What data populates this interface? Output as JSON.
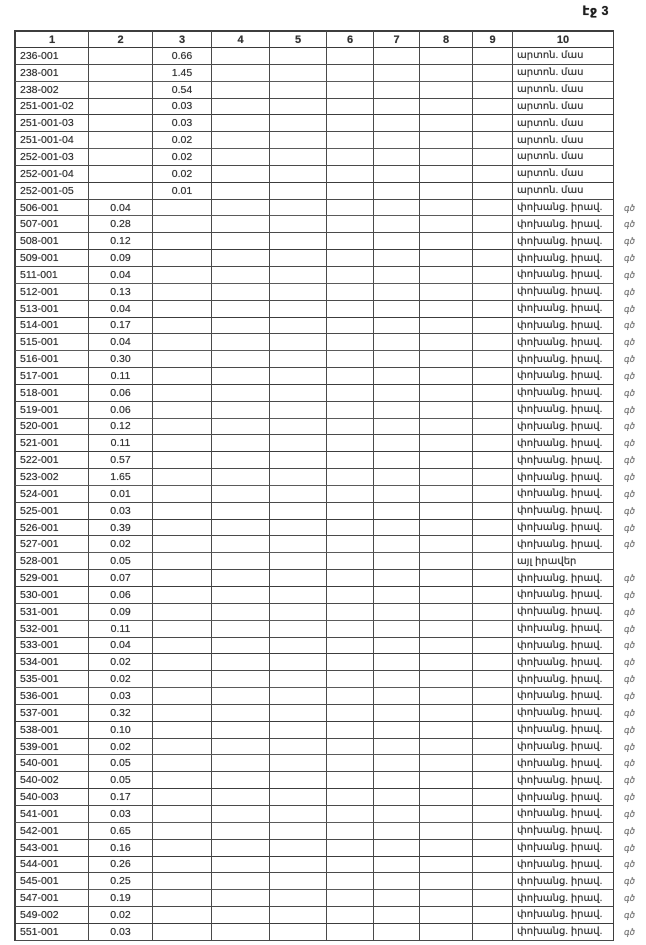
{
  "page": {
    "page_label": "էջ 3"
  },
  "colors": {
    "ink": "#2a2a2a",
    "grid": "#4a4a4a",
    "margin_mark": "#787878"
  },
  "table": {
    "headers": [
      "1",
      "2",
      "3",
      "4",
      "5",
      "6",
      "7",
      "8",
      "9",
      "10"
    ],
    "rows": [
      {
        "c1": "236-001",
        "c2": "",
        "c3": "0.66",
        "c10": "արտոն. մաս",
        "mark": ""
      },
      {
        "c1": "238-001",
        "c2": "",
        "c3": "1.45",
        "c10": "արտոն. մաս",
        "mark": ""
      },
      {
        "c1": "238-002",
        "c2": "",
        "c3": "0.54",
        "c10": "արտոն. մաս",
        "mark": ""
      },
      {
        "c1": "251-001-02",
        "c2": "",
        "c3": "0.03",
        "c10": "արտոն. մաս",
        "mark": ""
      },
      {
        "c1": "251-001-03",
        "c2": "",
        "c3": "0.03",
        "c10": "արտոն. մաս",
        "mark": ""
      },
      {
        "c1": "251-001-04",
        "c2": "",
        "c3": "0.02",
        "c10": "արտոն. մաս",
        "mark": ""
      },
      {
        "c1": "252-001-03",
        "c2": "",
        "c3": "0.02",
        "c10": "արտոն. մաս",
        "mark": ""
      },
      {
        "c1": "252-001-04",
        "c2": "",
        "c3": "0.02",
        "c10": "արտոն. մաս",
        "mark": ""
      },
      {
        "c1": "252-001-05",
        "c2": "",
        "c3": "0.01",
        "c10": "արտոն. մաս",
        "mark": ""
      },
      {
        "c1": "506-001",
        "c2": "0.04",
        "c3": "",
        "c10": "փոխանց. իրավ.",
        "mark": "գծ"
      },
      {
        "c1": "507-001",
        "c2": "0.28",
        "c3": "",
        "c10": "փոխանց. իրավ.",
        "mark": "գծ"
      },
      {
        "c1": "508-001",
        "c2": "0.12",
        "c3": "",
        "c10": "փոխանց. իրավ.",
        "mark": "գծ"
      },
      {
        "c1": "509-001",
        "c2": "0.09",
        "c3": "",
        "c10": "փոխանց. իրավ.",
        "mark": "գծ"
      },
      {
        "c1": "511-001",
        "c2": "0.04",
        "c3": "",
        "c10": "փոխանց. իրավ.",
        "mark": "գծ"
      },
      {
        "c1": "512-001",
        "c2": "0.13",
        "c3": "",
        "c10": "փոխանց. իրավ.",
        "mark": "գծ"
      },
      {
        "c1": "513-001",
        "c2": "0.04",
        "c3": "",
        "c10": "փոխանց. իրավ.",
        "mark": "գծ"
      },
      {
        "c1": "514-001",
        "c2": "0.17",
        "c3": "",
        "c10": "փոխանց. իրավ.",
        "mark": "գծ"
      },
      {
        "c1": "515-001",
        "c2": "0.04",
        "c3": "",
        "c10": "փոխանց. իրավ.",
        "mark": "գծ"
      },
      {
        "c1": "516-001",
        "c2": "0.30",
        "c3": "",
        "c10": "փոխանց. իրավ.",
        "mark": "գծ"
      },
      {
        "c1": "517-001",
        "c2": "0.11",
        "c3": "",
        "c10": "փոխանց. իրավ.",
        "mark": "գծ"
      },
      {
        "c1": "518-001",
        "c2": "0.06",
        "c3": "",
        "c10": "փոխանց. իրավ.",
        "mark": "գծ"
      },
      {
        "c1": "519-001",
        "c2": "0.06",
        "c3": "",
        "c10": "փոխանց. իրավ.",
        "mark": "գծ"
      },
      {
        "c1": "520-001",
        "c2": "0.12",
        "c3": "",
        "c10": "փոխանց. իրավ.",
        "mark": "գծ"
      },
      {
        "c1": "521-001",
        "c2": "0.11",
        "c3": "",
        "c10": "փոխանց. իրավ.",
        "mark": "գծ"
      },
      {
        "c1": "522-001",
        "c2": "0.57",
        "c3": "",
        "c10": "փոխանց. իրավ.",
        "mark": "գծ"
      },
      {
        "c1": "523-002",
        "c2": "1.65",
        "c3": "",
        "c10": "փոխանց. իրավ.",
        "mark": "գծ"
      },
      {
        "c1": "524-001",
        "c2": "0.01",
        "c3": "",
        "c10": "փոխանց. իրավ.",
        "mark": "գծ"
      },
      {
        "c1": "525-001",
        "c2": "0.03",
        "c3": "",
        "c10": "փոխանց. իրավ.",
        "mark": "գծ"
      },
      {
        "c1": "526-001",
        "c2": "0.39",
        "c3": "",
        "c10": "փոխանց. իրավ.",
        "mark": "գծ"
      },
      {
        "c1": "527-001",
        "c2": "0.02",
        "c3": "",
        "c10": "փոխանց. իրավ.",
        "mark": "գծ"
      },
      {
        "c1": "528-001",
        "c2": "0.05",
        "c3": "",
        "c10": "այլ իրավեր",
        "mark": ""
      },
      {
        "c1": "529-001",
        "c2": "0.07",
        "c3": "",
        "c10": "փոխանց. իրավ.",
        "mark": "գծ"
      },
      {
        "c1": "530-001",
        "c2": "0.06",
        "c3": "",
        "c10": "փոխանց. իրավ.",
        "mark": "գծ"
      },
      {
        "c1": "531-001",
        "c2": "0.09",
        "c3": "",
        "c10": "փոխանց. իրավ.",
        "mark": "գծ"
      },
      {
        "c1": "532-001",
        "c2": "0.11",
        "c3": "",
        "c10": "փոխանց. իրավ.",
        "mark": "գծ"
      },
      {
        "c1": "533-001",
        "c2": "0.04",
        "c3": "",
        "c10": "փոխանց. իրավ.",
        "mark": "գծ"
      },
      {
        "c1": "534-001",
        "c2": "0.02",
        "c3": "",
        "c10": "փոխանց. իրավ.",
        "mark": "գծ"
      },
      {
        "c1": "535-001",
        "c2": "0.02",
        "c3": "",
        "c10": "փոխանց. իրավ.",
        "mark": "գծ"
      },
      {
        "c1": "536-001",
        "c2": "0.03",
        "c3": "",
        "c10": "փոխանց. իրավ.",
        "mark": "գծ"
      },
      {
        "c1": "537-001",
        "c2": "0.32",
        "c3": "",
        "c10": "փոխանց. իրավ.",
        "mark": "գծ"
      },
      {
        "c1": "538-001",
        "c2": "0.10",
        "c3": "",
        "c10": "փոխանց. իրավ.",
        "mark": "գծ"
      },
      {
        "c1": "539-001",
        "c2": "0.02",
        "c3": "",
        "c10": "փոխանց. իրավ.",
        "mark": "գծ"
      },
      {
        "c1": "540-001",
        "c2": "0.05",
        "c3": "",
        "c10": "փոխանց. իրավ.",
        "mark": "գծ"
      },
      {
        "c1": "540-002",
        "c2": "0.05",
        "c3": "",
        "c10": "փոխանց. իրավ.",
        "mark": "գծ"
      },
      {
        "c1": "540-003",
        "c2": "0.17",
        "c3": "",
        "c10": "փոխանց. իրավ.",
        "mark": "գծ"
      },
      {
        "c1": "541-001",
        "c2": "0.03",
        "c3": "",
        "c10": "փոխանց. իրավ.",
        "mark": "գծ"
      },
      {
        "c1": "542-001",
        "c2": "0.65",
        "c3": "",
        "c10": "փոխանց. իրավ.",
        "mark": "գծ"
      },
      {
        "c1": "543-001",
        "c2": "0.16",
        "c3": "",
        "c10": "փոխանց. իրավ.",
        "mark": "գծ"
      },
      {
        "c1": "544-001",
        "c2": "0.26",
        "c3": "",
        "c10": "փոխանց. իրավ.",
        "mark": "գծ"
      },
      {
        "c1": "545-001",
        "c2": "0.25",
        "c3": "",
        "c10": "փոխանց. իրավ.",
        "mark": "գծ"
      },
      {
        "c1": "547-001",
        "c2": "0.19",
        "c3": "",
        "c10": "փոխանց. իրավ.",
        "mark": "գծ"
      },
      {
        "c1": "549-002",
        "c2": "0.02",
        "c3": "",
        "c10": "փոխանց. իրավ.",
        "mark": "գծ"
      },
      {
        "c1": "551-001",
        "c2": "0.03",
        "c3": "",
        "c10": "փոխանց. իրավ.",
        "mark": "գծ"
      }
    ]
  }
}
